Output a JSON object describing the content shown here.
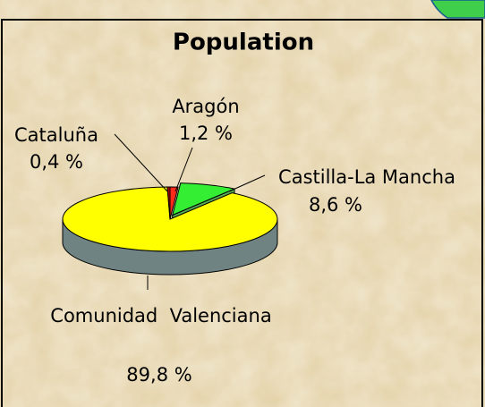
{
  "chart_data": {
    "type": "pie3d",
    "title": "Population",
    "categories": [
      "Aragón",
      "Castilla-La Mancha",
      "Comunidad  Valenciana",
      "Cataluña"
    ],
    "values": [
      1.2,
      8.6,
      89.8,
      0.4
    ],
    "value_labels": [
      "1,2 %",
      "8,6 %",
      "89,8 %",
      "0,4 %"
    ],
    "colors": [
      "#ff2a1a",
      "#33ee33",
      "#ffff00",
      "#b00000"
    ]
  }
}
